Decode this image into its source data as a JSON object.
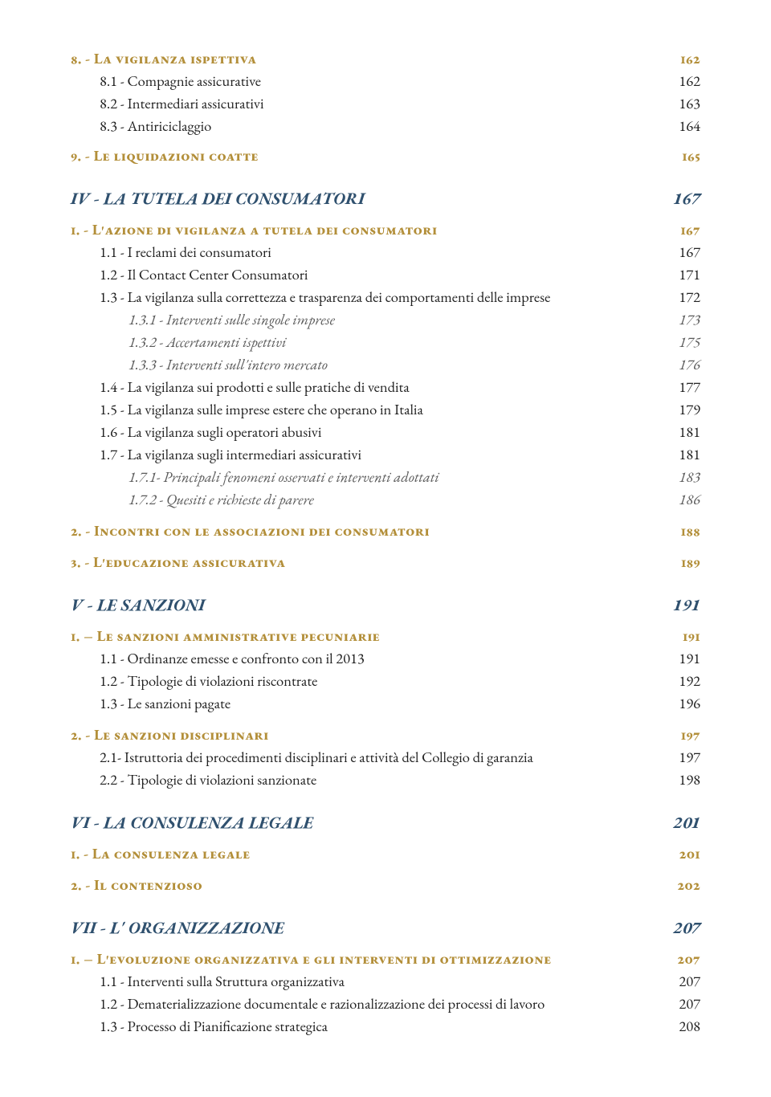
{
  "colors": {
    "gold": "#b38f3a",
    "navy": "#2f506e",
    "black": "#222222",
    "gray": "#595959",
    "background": "#ffffff"
  },
  "fonts": {
    "family": "Garamond",
    "h1_italic_bold_pt": 16,
    "h2_smallcaps_bold_pt": 14,
    "body_pt": 14,
    "italic_pt": 14
  },
  "entries": [
    {
      "style": "h2sc",
      "color": "gold",
      "indent": 0,
      "label": "8. - La vigilanza ispettiva",
      "page": "162",
      "gapBefore": 0
    },
    {
      "style": "body",
      "color": "black",
      "indent": 1,
      "label": "8.1 - Compagnie assicurative",
      "page": "162",
      "gapBefore": 3
    },
    {
      "style": "body",
      "color": "black",
      "indent": 1,
      "label": "8.2 - Intermediari assicurativi",
      "page": "163",
      "gapBefore": 3
    },
    {
      "style": "body",
      "color": "black",
      "indent": 1,
      "label": "8.3 - Antiriciclaggio",
      "page": "164",
      "gapBefore": 3
    },
    {
      "style": "h2sc",
      "color": "gold",
      "indent": 0,
      "label": "9. - Le liquidazioni coatte",
      "page": "165",
      "gapBefore": 12
    },
    {
      "style": "h1",
      "color": "navy",
      "indent": 0,
      "label": "IV - LA TUTELA DEI CONSUMATORI",
      "page": "167",
      "gapBefore": 28
    },
    {
      "style": "h2sc",
      "color": "gold",
      "indent": 0,
      "label": "1. - L'azione di vigilanza a tutela dei consumatori",
      "page": "167",
      "gapBefore": 12
    },
    {
      "style": "body",
      "color": "black",
      "indent": 1,
      "label": "1.1 - I reclami dei consumatori",
      "page": "167",
      "gapBefore": 3
    },
    {
      "style": "body",
      "color": "black",
      "indent": 1,
      "label": "1.2 - Il Contact Center Consumatori",
      "page": "171",
      "gapBefore": 3
    },
    {
      "style": "body",
      "color": "black",
      "indent": 1,
      "label": "1.3 - La vigilanza sulla correttezza e trasparenza dei comportamenti delle imprese",
      "page": "172",
      "gapBefore": 3
    },
    {
      "style": "italic",
      "color": "gray",
      "indent": 2,
      "label": "1.3.1 - Interventi sulle singole imprese",
      "page": "173",
      "gapBefore": 3
    },
    {
      "style": "italic",
      "color": "gray",
      "indent": 2,
      "label": "1.3.2 - Accertamenti ispettivi",
      "page": "175",
      "gapBefore": 3
    },
    {
      "style": "italic",
      "color": "gray",
      "indent": 2,
      "label": "1.3.3 - Interventi sull'intero mercato",
      "page": "176",
      "gapBefore": 3
    },
    {
      "style": "body",
      "color": "black",
      "indent": 1,
      "label": "1.4 - La vigilanza sui prodotti e sulle pratiche di vendita",
      "page": "177",
      "gapBefore": 3
    },
    {
      "style": "body",
      "color": "black",
      "indent": 1,
      "label": "1.5 - La vigilanza sulle imprese estere che operano in Italia",
      "page": "179",
      "gapBefore": 3
    },
    {
      "style": "body",
      "color": "black",
      "indent": 1,
      "label": "1.6 - La vigilanza sugli operatori abusivi",
      "page": "181",
      "gapBefore": 3
    },
    {
      "style": "body",
      "color": "black",
      "indent": 1,
      "label": "1.7 - La vigilanza sugli intermediari assicurativi",
      "page": "181",
      "gapBefore": 3
    },
    {
      "style": "italic",
      "color": "gray",
      "indent": 2,
      "label": "1.7.1- Principali fenomeni osservati e interventi adottati",
      "page": "183",
      "gapBefore": 3
    },
    {
      "style": "italic",
      "color": "gray",
      "indent": 2,
      "label": "1.7.2 - Quesiti e richieste di parere",
      "page": "186",
      "gapBefore": 3
    },
    {
      "style": "h2sc",
      "color": "gold",
      "indent": 0,
      "label": "2. - Incontri con le associazioni dei consumatori",
      "page": "188",
      "gapBefore": 14
    },
    {
      "style": "h2sc",
      "color": "gold",
      "indent": 0,
      "label": "3. - L'educazione assicurativa",
      "page": "189",
      "gapBefore": 14
    },
    {
      "style": "h1",
      "color": "navy",
      "indent": 0,
      "label": "V - LE SANZIONI",
      "page": "191",
      "gapBefore": 28
    },
    {
      "style": "h2sc",
      "color": "gold",
      "indent": 0,
      "label": "1. – Le sanzioni amministrative pecuniarie",
      "page": "191",
      "gapBefore": 12
    },
    {
      "style": "body",
      "color": "black",
      "indent": 1,
      "label": "1.1 - Ordinanze emesse e confronto con il 2013",
      "page": "191",
      "gapBefore": 3
    },
    {
      "style": "body",
      "color": "black",
      "indent": 1,
      "label": "1.2 - Tipologie di violazioni riscontrate",
      "page": "192",
      "gapBefore": 3
    },
    {
      "style": "body",
      "color": "black",
      "indent": 1,
      "label": "1.3 - Le sanzioni pagate",
      "page": "196",
      "gapBefore": 3
    },
    {
      "style": "h2sc",
      "color": "gold",
      "indent": 0,
      "label": "2. - Le sanzioni disciplinari",
      "page": "197",
      "gapBefore": 14
    },
    {
      "style": "body",
      "color": "black",
      "indent": 1,
      "label": "2.1- Istruttoria dei procedimenti disciplinari e attività del Collegio di garanzia",
      "page": "197",
      "gapBefore": 3
    },
    {
      "style": "body",
      "color": "black",
      "indent": 1,
      "label": "2.2 - Tipologie di violazioni sanzionate",
      "page": "198",
      "gapBefore": 3
    },
    {
      "style": "h1",
      "color": "navy",
      "indent": 0,
      "label": "VI - LA CONSULENZA LEGALE",
      "page": "201",
      "gapBefore": 28
    },
    {
      "style": "h2sc",
      "color": "gold",
      "indent": 0,
      "label": "1. - La consulenza legale",
      "page": "201",
      "gapBefore": 12
    },
    {
      "style": "h2sc",
      "color": "gold",
      "indent": 0,
      "label": "2. - Il contenzioso",
      "page": "202",
      "gapBefore": 14
    },
    {
      "style": "h1",
      "color": "navy",
      "indent": 0,
      "label": "VII - L' ORGANIZZAZIONE",
      "page": "207",
      "gapBefore": 28
    },
    {
      "style": "h2sc",
      "color": "gold",
      "indent": 0,
      "label": "1. – L'evoluzione organizzativa e gli interventi di ottimizzazione",
      "page": "207",
      "gapBefore": 12
    },
    {
      "style": "body",
      "color": "black",
      "indent": 1,
      "label": "1.1 - Interventi sulla Struttura organizzativa",
      "page": "207",
      "gapBefore": 3
    },
    {
      "style": "body",
      "color": "black",
      "indent": 1,
      "label": "1.2 - Dematerializzazione documentale e razionalizzazione dei processi di lavoro",
      "page": "207",
      "gapBefore": 3
    },
    {
      "style": "body",
      "color": "black",
      "indent": 1,
      "label": "1.3 - Processo di Pianificazione strategica",
      "page": "208",
      "gapBefore": 3
    }
  ]
}
